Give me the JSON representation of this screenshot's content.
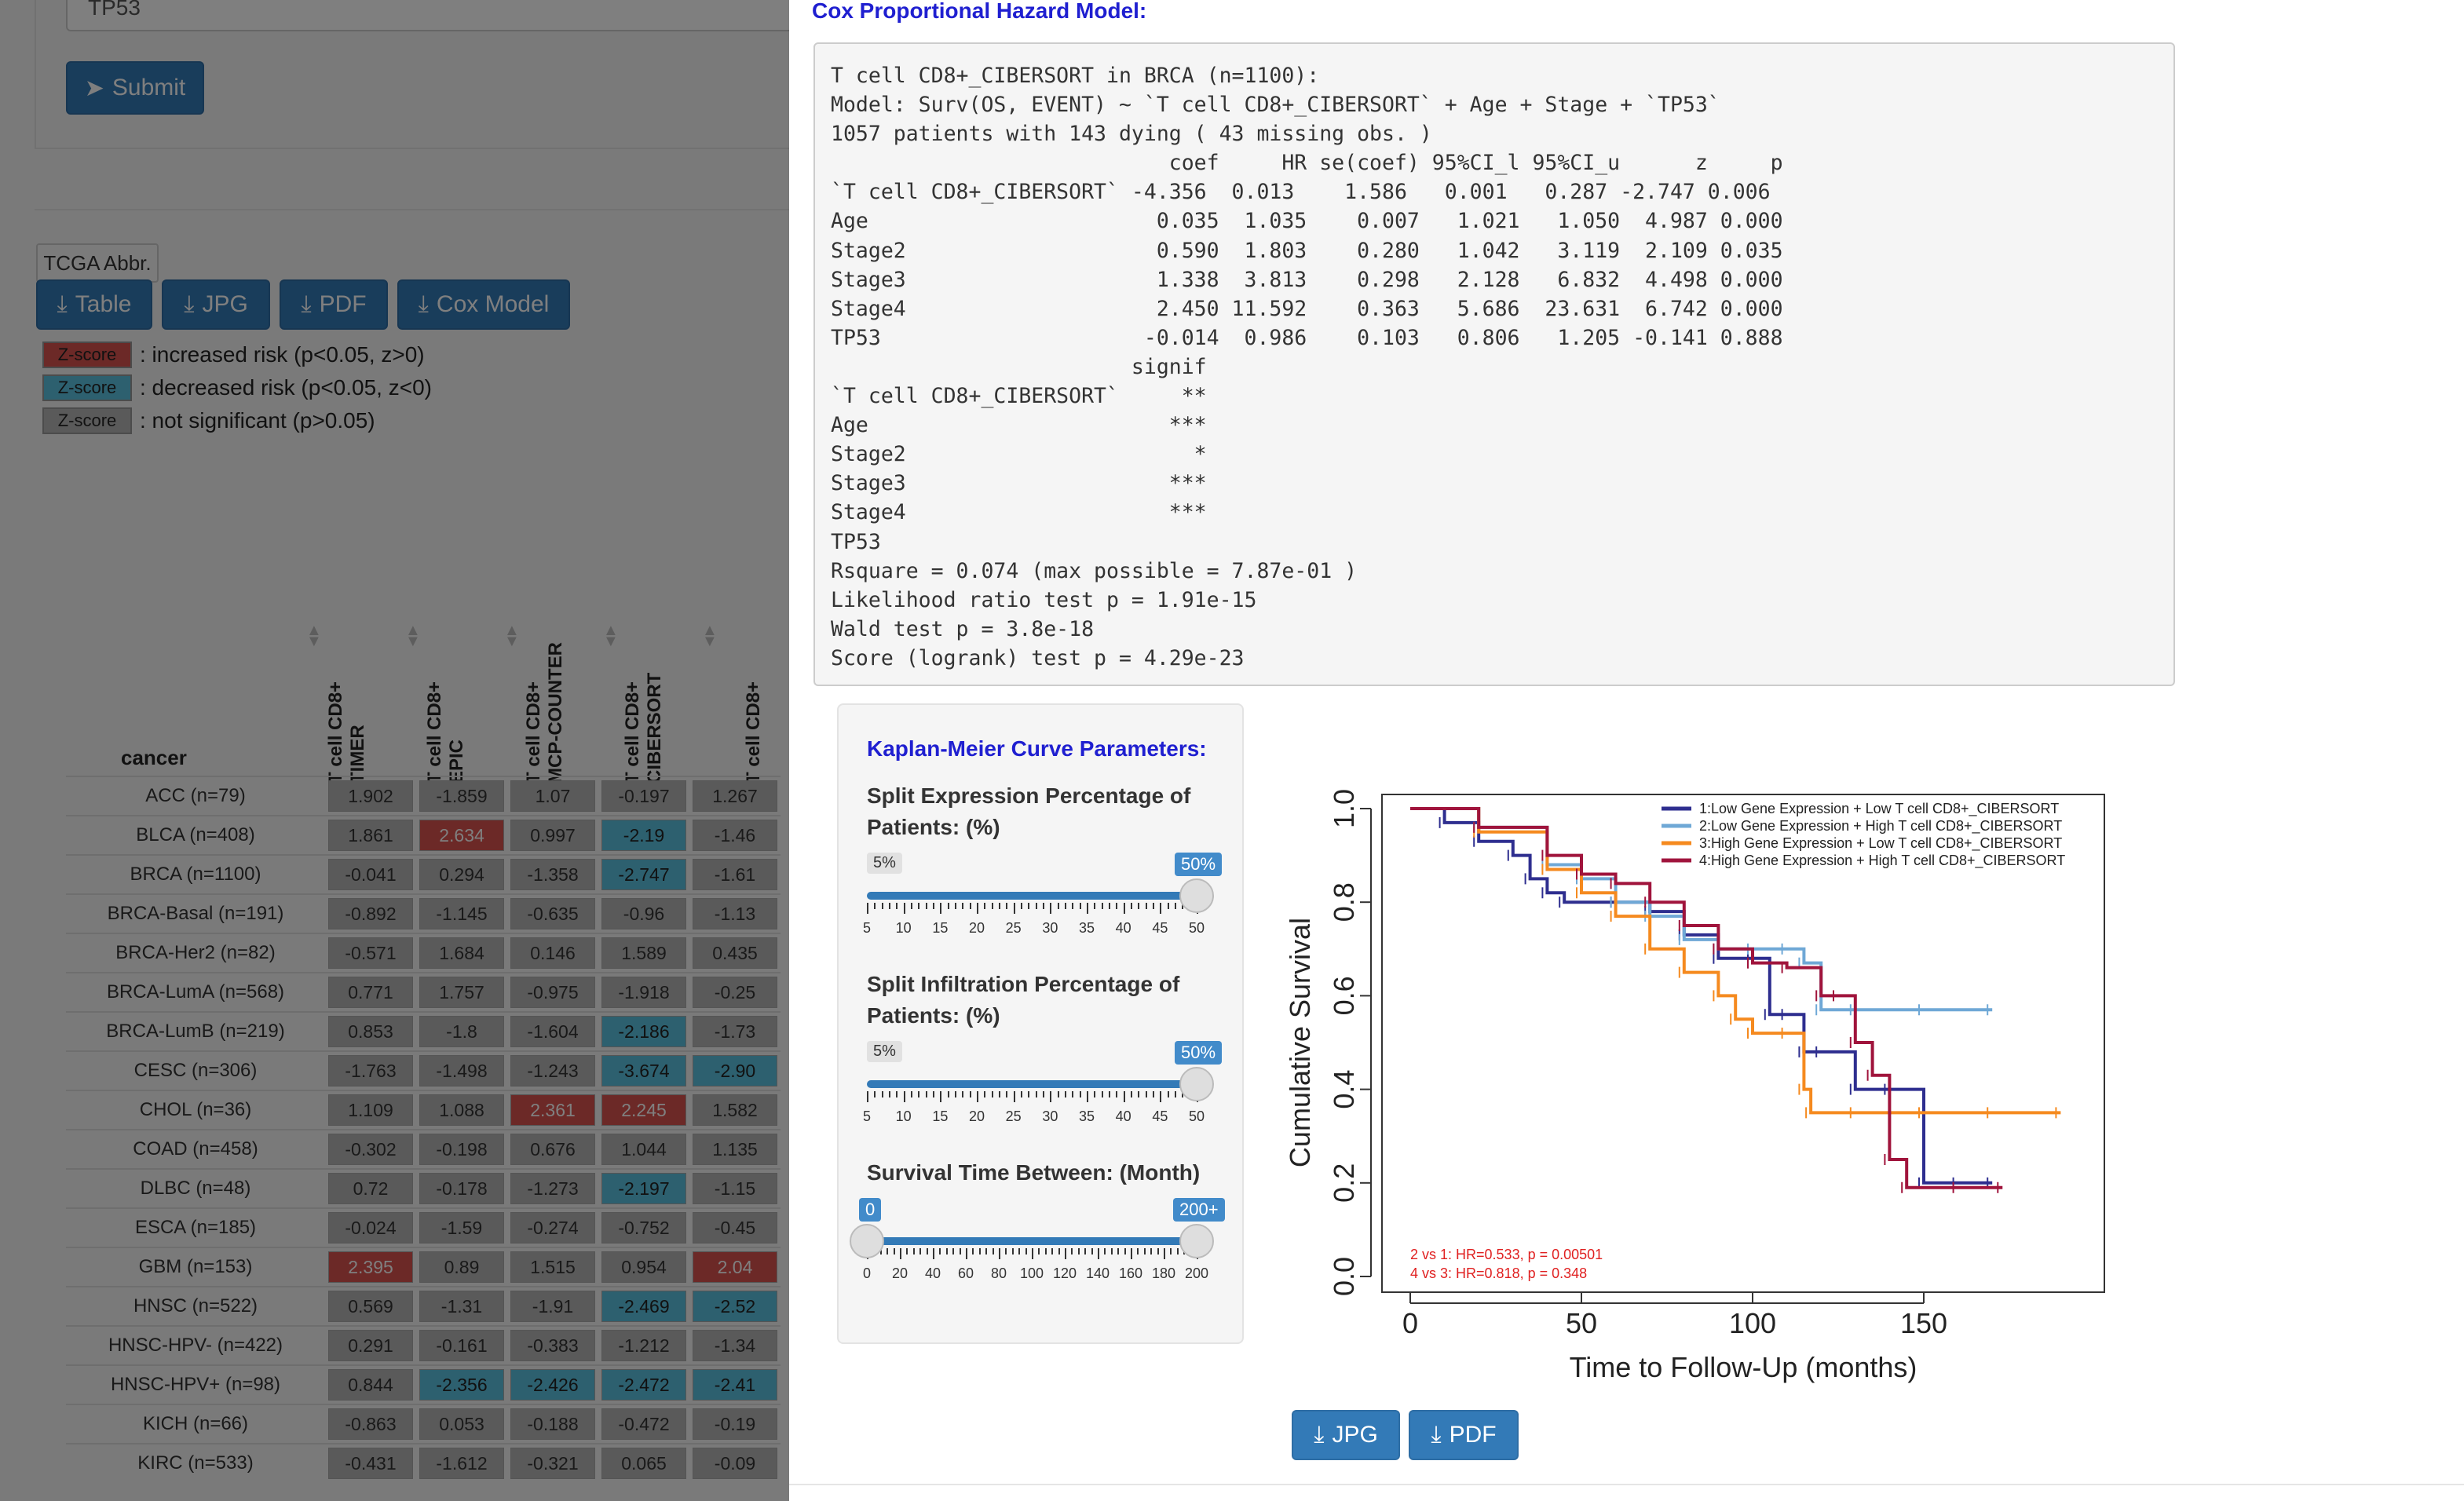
{
  "background": {
    "gene_input_value": "TP53",
    "submit_label": "Submit",
    "abbr_label": "TCGA Abbr.",
    "download_buttons": [
      "Table",
      "JPG",
      "PDF",
      "Cox Model"
    ],
    "legend": [
      {
        "badge": "Z-score",
        "color": "#d9534f",
        "text": ": increased risk (p<0.05, z>0)"
      },
      {
        "badge": "Z-score",
        "color": "#5bc0de",
        "text": ": decreased risk (p<0.05, z<0)"
      },
      {
        "badge": "Z-score",
        "color": "#b5b5b5",
        "text": ": not significant (p>0.05)"
      }
    ],
    "table": {
      "cancer_header": "cancer",
      "columns": [
        "T cell CD8+\nTIMER",
        "T cell CD8+\nEPIC",
        "T cell CD8+\nMCP-COUNTER",
        "T cell CD8+\nCIBERSORT",
        "T cell CD8+"
      ],
      "rows": [
        {
          "name": "ACC (n=79)",
          "values": [
            "1.902",
            "-1.859",
            "1.07",
            "-0.197",
            "1.267"
          ],
          "colors": [
            "g",
            "g",
            "g",
            "g",
            "g"
          ]
        },
        {
          "name": "BLCA (n=408)",
          "values": [
            "1.861",
            "2.634",
            "0.997",
            "-2.19",
            "-1.46"
          ],
          "colors": [
            "g",
            "r",
            "g",
            "b",
            "g"
          ]
        },
        {
          "name": "BRCA (n=1100)",
          "values": [
            "-0.041",
            "0.294",
            "-1.358",
            "-2.747",
            "-1.61"
          ],
          "colors": [
            "g",
            "g",
            "g",
            "b",
            "g"
          ]
        },
        {
          "name": "BRCA-Basal (n=191)",
          "values": [
            "-0.892",
            "-1.145",
            "-0.635",
            "-0.96",
            "-1.13"
          ],
          "colors": [
            "g",
            "g",
            "g",
            "g",
            "g"
          ]
        },
        {
          "name": "BRCA-Her2 (n=82)",
          "values": [
            "-0.571",
            "1.684",
            "0.146",
            "1.589",
            "0.435"
          ],
          "colors": [
            "g",
            "g",
            "g",
            "g",
            "g"
          ]
        },
        {
          "name": "BRCA-LumA (n=568)",
          "values": [
            "0.771",
            "1.757",
            "-0.975",
            "-1.918",
            "-0.25"
          ],
          "colors": [
            "g",
            "g",
            "g",
            "g",
            "g"
          ]
        },
        {
          "name": "BRCA-LumB (n=219)",
          "values": [
            "0.853",
            "-1.8",
            "-1.604",
            "-2.186",
            "-1.73"
          ],
          "colors": [
            "g",
            "g",
            "g",
            "b",
            "g"
          ]
        },
        {
          "name": "CESC (n=306)",
          "values": [
            "-1.763",
            "-1.498",
            "-1.243",
            "-3.674",
            "-2.90"
          ],
          "colors": [
            "g",
            "g",
            "g",
            "b",
            "b"
          ]
        },
        {
          "name": "CHOL (n=36)",
          "values": [
            "1.109",
            "1.088",
            "2.361",
            "2.245",
            "1.582"
          ],
          "colors": [
            "g",
            "g",
            "r",
            "r",
            "g"
          ]
        },
        {
          "name": "COAD (n=458)",
          "values": [
            "-0.302",
            "-0.198",
            "0.676",
            "1.044",
            "1.135"
          ],
          "colors": [
            "g",
            "g",
            "g",
            "g",
            "g"
          ]
        },
        {
          "name": "DLBC (n=48)",
          "values": [
            "0.72",
            "-0.178",
            "-1.273",
            "-2.197",
            "-1.15"
          ],
          "colors": [
            "g",
            "g",
            "g",
            "b",
            "g"
          ]
        },
        {
          "name": "ESCA (n=185)",
          "values": [
            "-0.024",
            "-1.59",
            "-0.274",
            "-0.752",
            "-0.45"
          ],
          "colors": [
            "g",
            "g",
            "g",
            "g",
            "g"
          ]
        },
        {
          "name": "GBM (n=153)",
          "values": [
            "2.395",
            "0.89",
            "1.515",
            "0.954",
            "2.04"
          ],
          "colors": [
            "r",
            "g",
            "g",
            "g",
            "r"
          ]
        },
        {
          "name": "HNSC (n=522)",
          "values": [
            "0.569",
            "-1.31",
            "-1.91",
            "-2.469",
            "-2.52"
          ],
          "colors": [
            "g",
            "g",
            "g",
            "b",
            "b"
          ]
        },
        {
          "name": "HNSC-HPV- (n=422)",
          "values": [
            "0.291",
            "-0.161",
            "-0.383",
            "-1.212",
            "-1.34"
          ],
          "colors": [
            "g",
            "g",
            "g",
            "g",
            "g"
          ]
        },
        {
          "name": "HNSC-HPV+ (n=98)",
          "values": [
            "0.844",
            "-2.356",
            "-2.426",
            "-2.472",
            "-2.41"
          ],
          "colors": [
            "g",
            "b",
            "b",
            "b",
            "b"
          ]
        },
        {
          "name": "KICH (n=66)",
          "values": [
            "-0.863",
            "0.053",
            "-0.188",
            "-0.472",
            "-0.19"
          ],
          "colors": [
            "g",
            "g",
            "g",
            "g",
            "g"
          ]
        },
        {
          "name": "KIRC (n=533)",
          "values": [
            "-0.431",
            "-1.612",
            "-0.321",
            "0.065",
            "-0.09"
          ],
          "colors": [
            "g",
            "g",
            "g",
            "g",
            "g"
          ]
        }
      ]
    }
  },
  "modal": {
    "cox_title": "Cox Proportional Hazard Model:",
    "cox_output": "T cell CD8+_CIBERSORT in BRCA (n=1100):\nModel: Surv(OS, EVENT) ~ `T cell CD8+_CIBERSORT` + Age + Stage + `TP53`\n1057 patients with 143 dying ( 43 missing obs. )\n                           coef     HR se(coef) 95%CI_l 95%CI_u      z     p\n`T cell CD8+_CIBERSORT` -4.356  0.013    1.586   0.001   0.287 -2.747 0.006\nAge                       0.035  1.035    0.007   1.021   1.050  4.987 0.000\nStage2                    0.590  1.803    0.280   1.042   3.119  2.109 0.035\nStage3                    1.338  3.813    0.298   2.128   6.832  4.498 0.000\nStage4                    2.450 11.592    0.363   5.686  23.631  6.742 0.000\nTP53                     -0.014  0.986    0.103   0.806   1.205 -0.141 0.888\n                        signif\n`T cell CD8+_CIBERSORT`     **\nAge                        ***\nStage2                       *\nStage3                     ***\nStage4                     ***\nTP53\nRsquare = 0.074 (max possible = 7.87e-01 )\nLikelihood ratio test p = 1.91e-15\nWald test p = 3.8e-18\nScore (logrank) test p = 4.29e-23",
    "km_panel": {
      "title": "Kaplan-Meier Curve Parameters:",
      "expr_label": "Split Expression Percentage of Patients: (%)",
      "expr_min_tag": "5%",
      "expr_value_tag": "50%",
      "expr_value": 50,
      "expr_ticks": [
        "5",
        "10",
        "15",
        "20",
        "25",
        "30",
        "35",
        "40",
        "45",
        "50"
      ],
      "infil_label": "Split Infiltration Percentage of Patients: (%)",
      "infil_min_tag": "5%",
      "infil_value_tag": "50%",
      "infil_value": 50,
      "infil_ticks": [
        "5",
        "10",
        "15",
        "20",
        "25",
        "30",
        "35",
        "40",
        "45",
        "50"
      ],
      "time_label": "Survival Time Between: (Month)",
      "time_min_tag": "0",
      "time_max_tag": "200+",
      "time_range": [
        0,
        200
      ],
      "time_ticks": [
        "0",
        "20",
        "40",
        "60",
        "80",
        "100",
        "120",
        "140",
        "160",
        "180",
        "200"
      ]
    },
    "download_jpg": "JPG",
    "download_pdf": "PDF"
  },
  "colors": {
    "primary_button": "#337ab7",
    "title_blue": "#1f1fd0",
    "zscore_red": "#d9534f",
    "zscore_blue": "#5bc0de",
    "zscore_gray": "#b5b5b5"
  },
  "chart_data": {
    "type": "line",
    "title": "",
    "xlabel": "Time to Follow-Up (months)",
    "ylabel": "Cumulative Survival",
    "xlim": [
      0,
      200
    ],
    "ylim": [
      0,
      1
    ],
    "xticks": [
      "0",
      "50",
      "100",
      "150"
    ],
    "yticks": [
      "0.0",
      "0.2",
      "0.4",
      "0.6",
      "0.8",
      "1.0"
    ],
    "legend_position": "top-right",
    "annotations": [
      "2 vs 1: HR=0.533, p = 0.00501",
      "4 vs 3: HR=0.818, p = 0.348"
    ],
    "series": [
      {
        "name": "1:Low Gene Expression + Low T cell CD8+_CIBERSORT",
        "color": "#2e2e8f",
        "x": [
          0,
          10,
          20,
          30,
          35,
          40,
          45,
          60,
          70,
          80,
          90,
          100,
          105,
          110,
          115,
          120,
          130,
          140,
          150,
          160,
          170
        ],
        "y": [
          1.0,
          0.97,
          0.93,
          0.9,
          0.85,
          0.82,
          0.8,
          0.8,
          0.78,
          0.73,
          0.68,
          0.68,
          0.56,
          0.56,
          0.48,
          0.48,
          0.4,
          0.4,
          0.2,
          0.2,
          0.2
        ]
      },
      {
        "name": "2:Low Gene Expression + High T cell CD8+_CIBERSORT",
        "color": "#6fa8d6",
        "x": [
          0,
          20,
          40,
          50,
          60,
          70,
          80,
          90,
          100,
          110,
          115,
          120,
          130,
          150,
          170
        ],
        "y": [
          1.0,
          0.96,
          0.88,
          0.85,
          0.8,
          0.77,
          0.72,
          0.7,
          0.7,
          0.7,
          0.67,
          0.57,
          0.57,
          0.57,
          0.57
        ]
      },
      {
        "name": "3:High Gene Expression + Low T cell CD8+_CIBERSORT",
        "color": "#f58a1f",
        "x": [
          0,
          20,
          40,
          50,
          60,
          70,
          80,
          90,
          95,
          100,
          110,
          115,
          117,
          130,
          150,
          170,
          190
        ],
        "y": [
          1.0,
          0.95,
          0.87,
          0.82,
          0.77,
          0.7,
          0.65,
          0.6,
          0.55,
          0.52,
          0.52,
          0.4,
          0.35,
          0.35,
          0.35,
          0.35,
          0.35
        ]
      },
      {
        "name": "4:High Gene Expression + High T cell CD8+_CIBERSORT",
        "color": "#a0143c",
        "x": [
          0,
          20,
          40,
          50,
          60,
          70,
          80,
          90,
          100,
          110,
          120,
          125,
          130,
          135,
          140,
          145,
          160,
          173
        ],
        "y": [
          1.0,
          0.96,
          0.9,
          0.86,
          0.84,
          0.8,
          0.75,
          0.7,
          0.67,
          0.66,
          0.6,
          0.6,
          0.5,
          0.43,
          0.25,
          0.19,
          0.19,
          0.19
        ]
      }
    ]
  }
}
